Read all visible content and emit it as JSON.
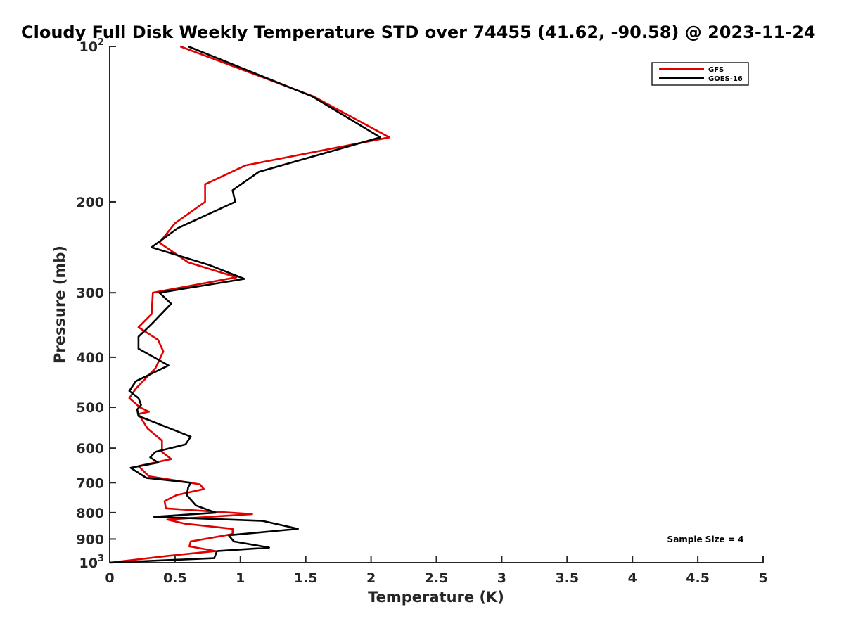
{
  "chart_data": {
    "type": "line",
    "orientation": "vertical-profile",
    "title": "Cloudy Full Disk Weekly Temperature STD over 74455 (41.62, -90.58) @ 2023-11-24",
    "xlabel": "Temperature (K)",
    "ylabel": "Pressure (mb)",
    "xlim": [
      0,
      5
    ],
    "ylim": [
      100,
      1000
    ],
    "y_scale": "log",
    "y_reversed": true,
    "grid": false,
    "legend_position": "top-right",
    "x_ticks": [
      "0",
      "0.5",
      "1",
      "1.5",
      "2",
      "2.5",
      "3",
      "3.5",
      "4",
      "4.5",
      "5"
    ],
    "y_ticks": [
      {
        "value": 100,
        "label": "10",
        "sup": "2"
      },
      {
        "value": 200,
        "label": "200"
      },
      {
        "value": 300,
        "label": "300"
      },
      {
        "value": 400,
        "label": "400"
      },
      {
        "value": 500,
        "label": "500"
      },
      {
        "value": 600,
        "label": "600"
      },
      {
        "value": 700,
        "label": "700"
      },
      {
        "value": 800,
        "label": "800"
      },
      {
        "value": 900,
        "label": "900"
      },
      {
        "value": 1000,
        "label": "10",
        "sup": "3"
      }
    ],
    "annotation": "Sample Size = 4",
    "series": [
      {
        "name": "GFS",
        "color": "#e00000",
        "points": [
          [
            0.54,
            100
          ],
          [
            1.56,
            125
          ],
          [
            2.14,
            150
          ],
          [
            1.04,
            170
          ],
          [
            0.73,
            185
          ],
          [
            0.73,
            200
          ],
          [
            0.5,
            220
          ],
          [
            0.38,
            240
          ],
          [
            0.6,
            262
          ],
          [
            0.97,
            280
          ],
          [
            0.33,
            300
          ],
          [
            0.32,
            330
          ],
          [
            0.22,
            350
          ],
          [
            0.37,
            370
          ],
          [
            0.41,
            390
          ],
          [
            0.35,
            420
          ],
          [
            0.2,
            460
          ],
          [
            0.15,
            480
          ],
          [
            0.23,
            500
          ],
          [
            0.3,
            510
          ],
          [
            0.22,
            515
          ],
          [
            0.29,
            550
          ],
          [
            0.4,
            580
          ],
          [
            0.4,
            610
          ],
          [
            0.47,
            630
          ],
          [
            0.22,
            650
          ],
          [
            0.3,
            680
          ],
          [
            0.69,
            705
          ],
          [
            0.72,
            720
          ],
          [
            0.51,
            740
          ],
          [
            0.42,
            760
          ],
          [
            0.43,
            785
          ],
          [
            1.09,
            805
          ],
          [
            0.44,
            825
          ],
          [
            0.57,
            840
          ],
          [
            0.94,
            860
          ],
          [
            0.94,
            880
          ],
          [
            0.62,
            910
          ],
          [
            0.61,
            930
          ],
          [
            0.81,
            950
          ],
          [
            0.45,
            970
          ],
          [
            0.0,
            1000
          ]
        ]
      },
      {
        "name": "GOES-16",
        "color": "#000000",
        "points": [
          [
            0.6,
            100
          ],
          [
            1.55,
            125
          ],
          [
            2.07,
            150
          ],
          [
            1.14,
            175
          ],
          [
            0.94,
            190
          ],
          [
            0.96,
            200
          ],
          [
            0.52,
            225
          ],
          [
            0.32,
            245
          ],
          [
            0.76,
            265
          ],
          [
            1.03,
            282
          ],
          [
            0.38,
            300
          ],
          [
            0.47,
            315
          ],
          [
            0.32,
            345
          ],
          [
            0.22,
            365
          ],
          [
            0.22,
            385
          ],
          [
            0.45,
            415
          ],
          [
            0.2,
            445
          ],
          [
            0.15,
            465
          ],
          [
            0.22,
            480
          ],
          [
            0.24,
            495
          ],
          [
            0.21,
            505
          ],
          [
            0.22,
            520
          ],
          [
            0.62,
            570
          ],
          [
            0.58,
            590
          ],
          [
            0.35,
            610
          ],
          [
            0.31,
            625
          ],
          [
            0.37,
            640
          ],
          [
            0.16,
            655
          ],
          [
            0.28,
            685
          ],
          [
            0.62,
            700
          ],
          [
            0.6,
            715
          ],
          [
            0.59,
            740
          ],
          [
            0.66,
            775
          ],
          [
            0.81,
            800
          ],
          [
            0.34,
            815
          ],
          [
            1.17,
            830
          ],
          [
            1.44,
            860
          ],
          [
            0.91,
            885
          ],
          [
            0.95,
            910
          ],
          [
            1.22,
            935
          ],
          [
            0.82,
            950
          ],
          [
            0.8,
            980
          ],
          [
            0.0,
            1000
          ]
        ]
      }
    ]
  }
}
